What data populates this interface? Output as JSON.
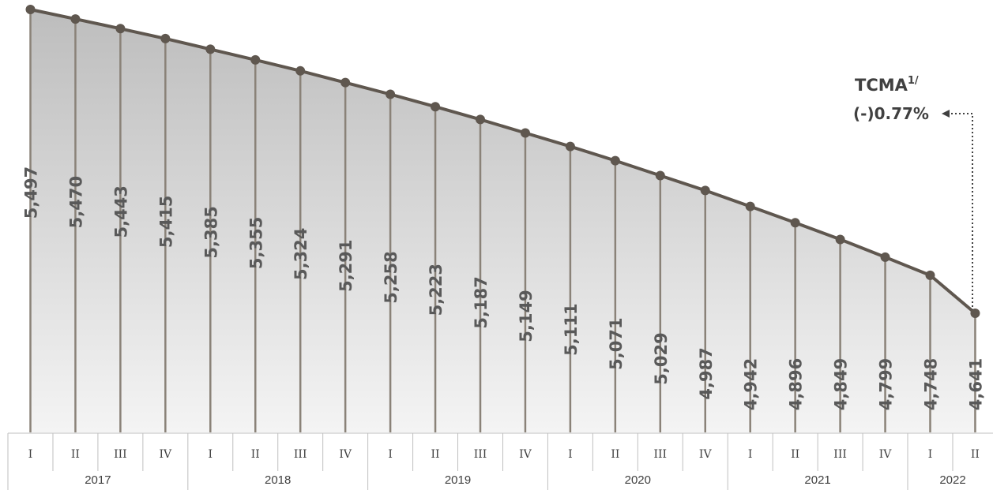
{
  "chart_data": {
    "type": "area",
    "title": "",
    "xlabel": "",
    "ylabel": "",
    "categories": [
      "I",
      "II",
      "III",
      "IV",
      "I",
      "II",
      "III",
      "IV",
      "I",
      "II",
      "III",
      "IV",
      "I",
      "II",
      "III",
      "IV",
      "I",
      "II",
      "III",
      "IV",
      "I",
      "II"
    ],
    "years": [
      "2017",
      "2018",
      "2019",
      "2020",
      "2021",
      "2022"
    ],
    "values": [
      5497,
      5470,
      5443,
      5415,
      5385,
      5355,
      5324,
      5291,
      5258,
      5223,
      5187,
      5149,
      5111,
      5071,
      5029,
      4987,
      4942,
      4896,
      4849,
      4799,
      4748,
      4641
    ],
    "value_labels": [
      "5,497",
      "5,470",
      "5,443",
      "5,415",
      "5,385",
      "5,355",
      "5,324",
      "5,291",
      "5,258",
      "5,223",
      "5,187",
      "5,149",
      "5,111",
      "5,071",
      "5,029",
      "4,987",
      "4,942",
      "4,896",
      "4,849",
      "4,799",
      "4,748",
      "4,641"
    ],
    "grid": false,
    "colors": {
      "line": "#5f574f",
      "area_top": "#bdbdbd",
      "area_bottom": "#f4f4f4",
      "drop_line": "#8a8278"
    }
  },
  "annotation": {
    "title": "TCMA",
    "superscript": "1/",
    "rate": "(-)0.77%"
  }
}
